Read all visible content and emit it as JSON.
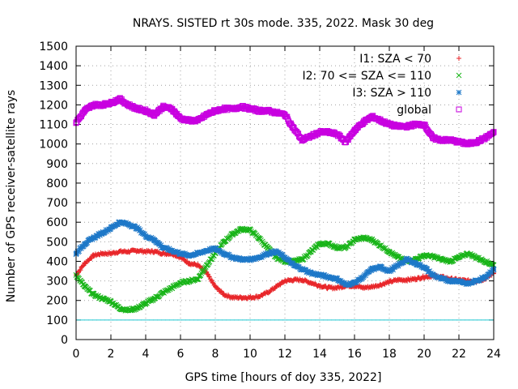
{
  "chart_data": {
    "type": "scatter",
    "title": "NRAYS. SISTED rt 30s mode. 335, 2022. Mask 30 deg",
    "xlabel": "GPS time [hours of doy 335, 2022]",
    "ylabel": "Number of GPS receiver-satellite rays",
    "xlim": [
      0,
      24
    ],
    "ylim": [
      0,
      1500
    ],
    "x_ticks": [
      "0",
      "2",
      "4",
      "6",
      "8",
      "10",
      "12",
      "14",
      "16",
      "18",
      "20",
      "22",
      "24"
    ],
    "y_ticks": [
      "0",
      "100",
      "200",
      "300",
      "400",
      "500",
      "600",
      "700",
      "800",
      "900",
      "1000",
      "1100",
      "1200",
      "1300",
      "1400",
      "1500"
    ],
    "grid": true,
    "legend_position": "top-right",
    "reference_line": {
      "y": 100,
      "color": "#1ec8d2"
    },
    "series": [
      {
        "name": "I1: SZA < 70",
        "marker": "+",
        "color": "#e8262a",
        "x": [
          0,
          0.5,
          1,
          1.5,
          2,
          2.5,
          3,
          3.5,
          4,
          4.5,
          5,
          5.5,
          6,
          6.5,
          7,
          7.5,
          8,
          8.5,
          9,
          9.5,
          10,
          10.5,
          11,
          11.5,
          12,
          12.5,
          13,
          13.5,
          14,
          14.5,
          15,
          15.5,
          16,
          16.5,
          17,
          17.5,
          18,
          18.5,
          19,
          19.5,
          20,
          20.5,
          21,
          21.5,
          22,
          22.5,
          23,
          23.5,
          24
        ],
        "values": [
          330,
          390,
          430,
          440,
          440,
          450,
          450,
          455,
          450,
          450,
          440,
          440,
          420,
          390,
          380,
          340,
          270,
          230,
          215,
          215,
          215,
          220,
          240,
          270,
          300,
          305,
          305,
          290,
          275,
          265,
          265,
          275,
          275,
          265,
          270,
          280,
          295,
          305,
          305,
          310,
          320,
          325,
          320,
          310,
          305,
          300,
          300,
          310,
          340
        ]
      },
      {
        "name": "I2: 70 <= SZA <= 110",
        "marker": "x",
        "color": "#18b418",
        "x": [
          0,
          0.5,
          1,
          1.5,
          2,
          2.5,
          3,
          3.5,
          4,
          4.5,
          5,
          5.5,
          6,
          6.5,
          7,
          7.5,
          8,
          8.5,
          9,
          9.5,
          10,
          10.5,
          11,
          11.5,
          12,
          12.5,
          13,
          13.5,
          14,
          14.5,
          15,
          15.5,
          16,
          16.5,
          17,
          17.5,
          18,
          18.5,
          19,
          19.5,
          20,
          20.5,
          21,
          21.5,
          22,
          22.5,
          23,
          23.5,
          24
        ],
        "values": [
          330,
          270,
          230,
          210,
          195,
          160,
          150,
          160,
          185,
          210,
          240,
          265,
          290,
          300,
          310,
          380,
          440,
          500,
          540,
          565,
          560,
          520,
          470,
          420,
          400,
          400,
          410,
          450,
          490,
          490,
          470,
          470,
          510,
          520,
          510,
          480,
          450,
          420,
          400,
          410,
          430,
          425,
          410,
          400,
          420,
          440,
          420,
          400,
          380
        ]
      },
      {
        "name": "I3: SZA > 110",
        "marker": "*",
        "color": "#1e78c8",
        "x": [
          0,
          0.5,
          1,
          1.5,
          2,
          2.5,
          3,
          3.5,
          4,
          4.5,
          5,
          5.5,
          6,
          6.5,
          7,
          7.5,
          8,
          8.5,
          9,
          9.5,
          10,
          10.5,
          11,
          11.5,
          12,
          12.5,
          13,
          13.5,
          14,
          14.5,
          15,
          15.5,
          16,
          16.5,
          17,
          17.5,
          18,
          18.5,
          19,
          19.5,
          20,
          20.5,
          21,
          21.5,
          22,
          22.5,
          23,
          23.5,
          24
        ],
        "values": [
          440,
          490,
          520,
          545,
          570,
          600,
          590,
          570,
          530,
          510,
          470,
          455,
          440,
          430,
          440,
          455,
          465,
          440,
          420,
          410,
          410,
          420,
          440,
          450,
          420,
          380,
          360,
          340,
          330,
          320,
          310,
          280,
          290,
          320,
          360,
          370,
          350,
          380,
          410,
          390,
          370,
          330,
          310,
          300,
          300,
          285,
          300,
          320,
          360
        ]
      },
      {
        "name": "global",
        "marker": "square",
        "color": "#c800e0",
        "x": [
          0,
          0.5,
          1,
          1.5,
          2,
          2.5,
          3,
          3.5,
          4,
          4.5,
          5,
          5.5,
          6,
          6.5,
          7,
          7.5,
          8,
          8.5,
          9,
          9.5,
          10,
          10.5,
          11,
          11.5,
          12,
          12.5,
          13,
          13.5,
          14,
          14.5,
          15,
          15.5,
          16,
          16.5,
          17,
          17.5,
          18,
          18.5,
          19,
          19.5,
          20,
          20.5,
          21,
          21.5,
          22,
          22.5,
          23,
          23.5,
          24
        ],
        "values": [
          1110,
          1170,
          1200,
          1200,
          1210,
          1230,
          1200,
          1180,
          1170,
          1150,
          1190,
          1180,
          1130,
          1120,
          1120,
          1150,
          1170,
          1180,
          1180,
          1190,
          1180,
          1170,
          1170,
          1160,
          1150,
          1080,
          1020,
          1040,
          1060,
          1060,
          1050,
          1010,
          1070,
          1110,
          1140,
          1120,
          1100,
          1090,
          1090,
          1100,
          1100,
          1030,
          1020,
          1020,
          1010,
          1000,
          1010,
          1030,
          1060
        ]
      }
    ]
  }
}
